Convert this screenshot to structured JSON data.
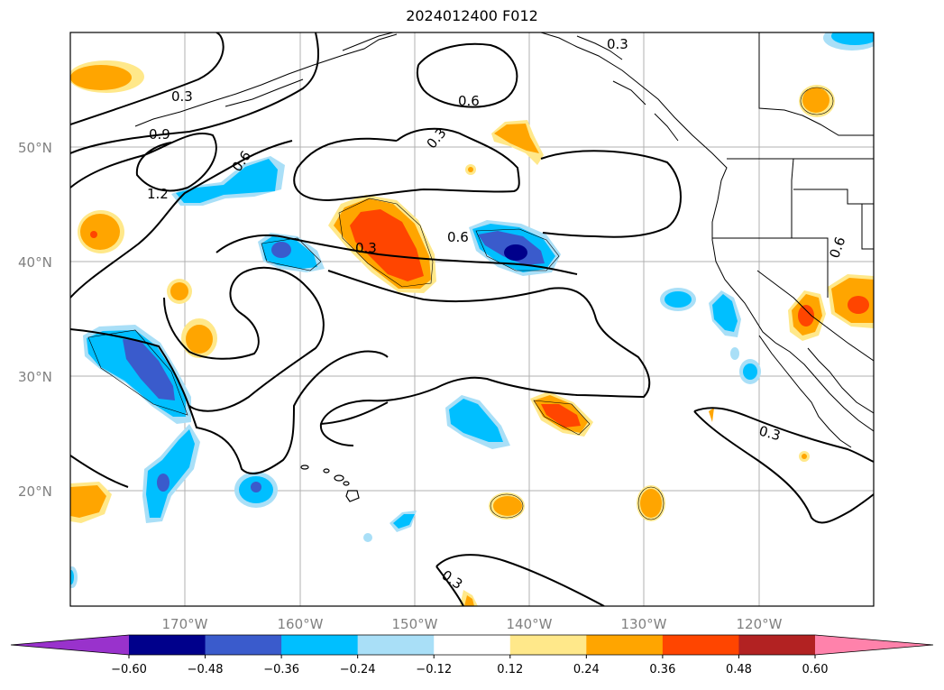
{
  "title": "2024012400 F012",
  "colors": {
    "gridline": "#b0b0b0",
    "contour": "#000000",
    "coast": "#000000",
    "label_gray": "#808080"
  },
  "lat_labels": [
    "50°N",
    "40°N",
    "30°N",
    "20°N"
  ],
  "lon_labels": [
    "170°W",
    "160°W",
    "150°W",
    "140°W",
    "130°W",
    "120°W"
  ],
  "contour_labels": [
    "0.3",
    "0.9",
    "1.2",
    "0.6",
    "0.6",
    "0.3",
    "0.6",
    "0.3",
    "0.3",
    "0.3",
    "0.3",
    "0.6"
  ],
  "colorbar": {
    "colors": [
      "#9932cc",
      "#00008b",
      "#3a5bcc",
      "#00bfff",
      "#a9dff7",
      "#ffffff",
      "#ffe88a",
      "#ffa500",
      "#ff4500",
      "#b22222",
      "#ff82ab"
    ],
    "tick_labels": [
      "−0.60",
      "−0.48",
      "−0.36",
      "−0.24",
      "−0.12",
      "0.12",
      "0.24",
      "0.36",
      "0.48",
      "0.60"
    ]
  }
}
